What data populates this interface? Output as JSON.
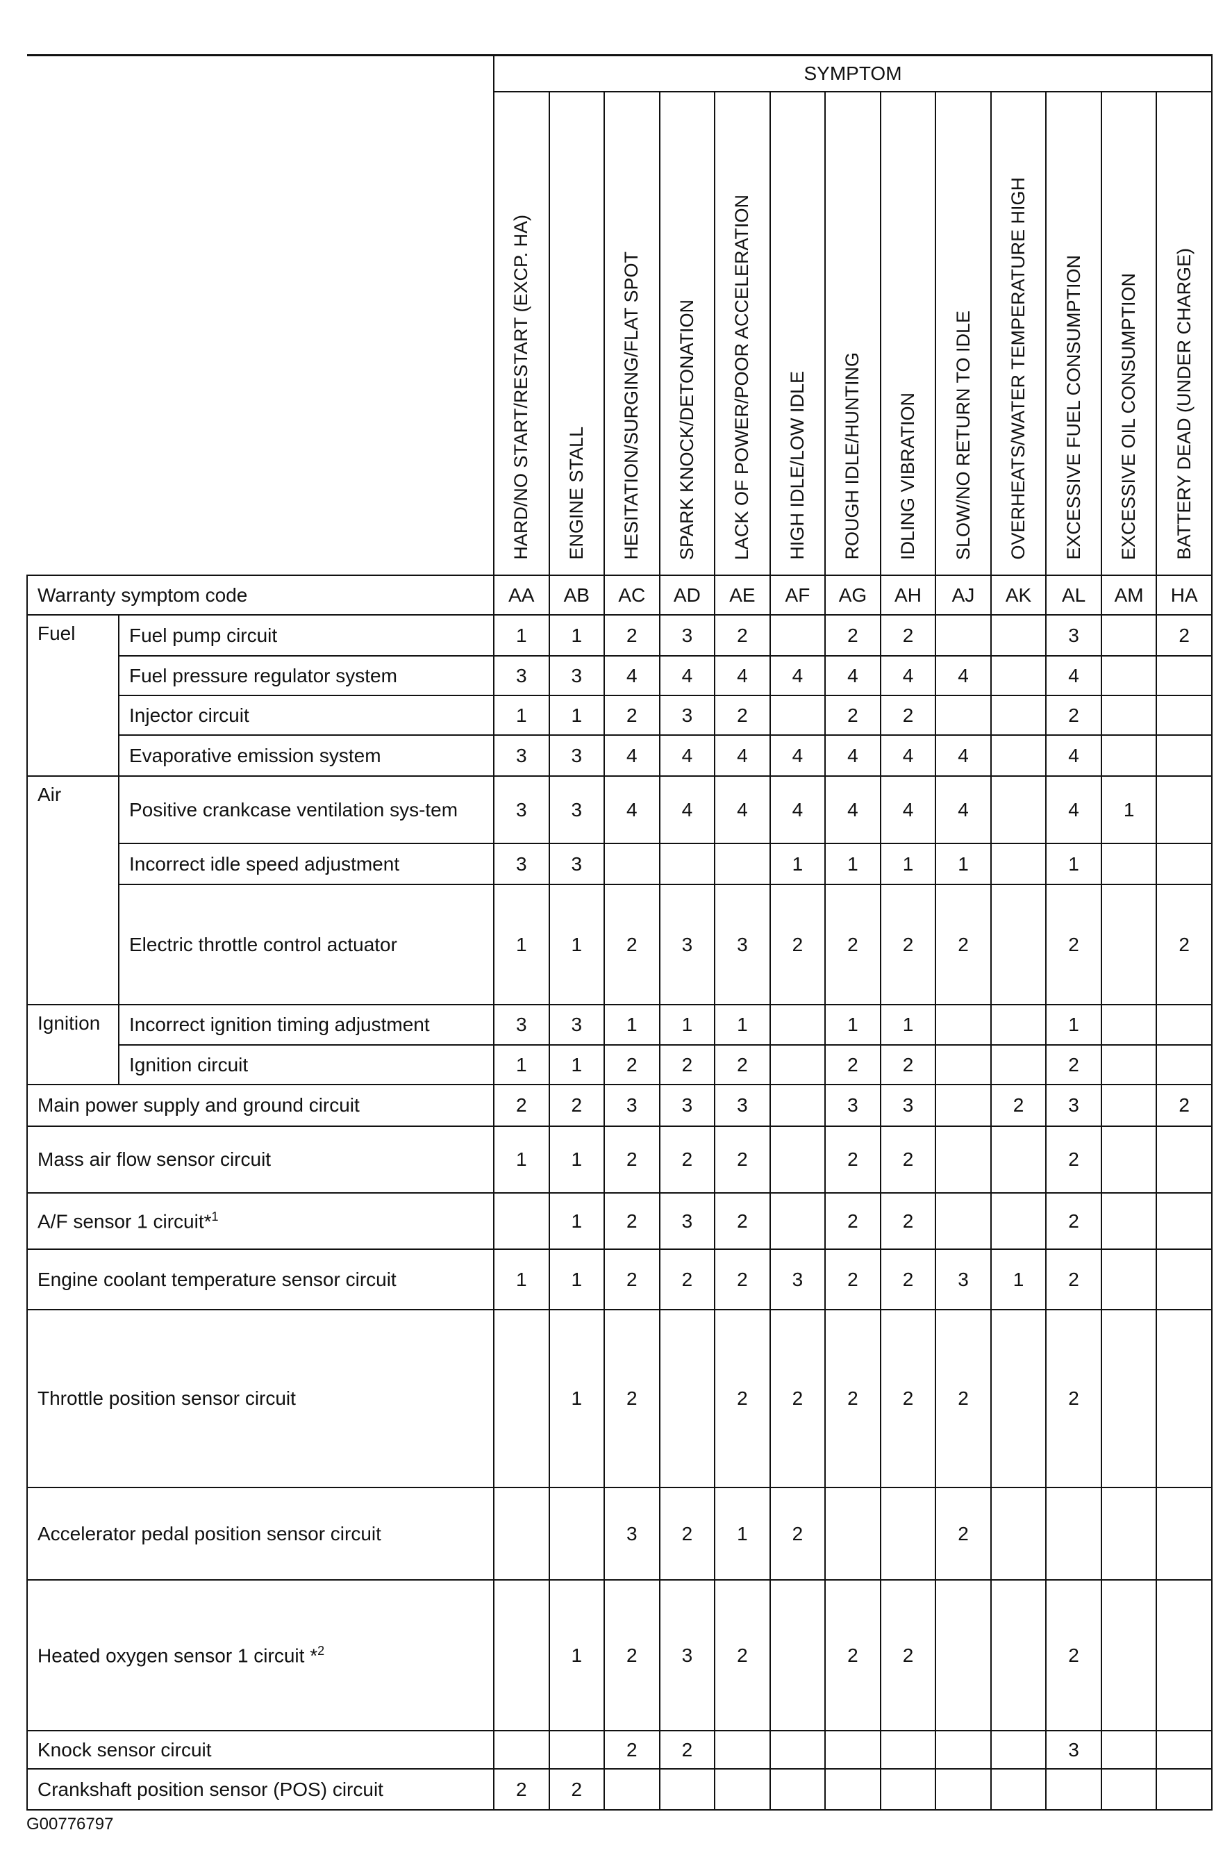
{
  "header": {
    "symptom_label": "SYMPTOM",
    "symptoms": [
      "HARD/NO START/RESTART (EXCP. HA)",
      "ENGINE STALL",
      "HESITATION/SURGING/FLAT SPOT",
      "SPARK KNOCK/DETONATION",
      "LACK OF POWER/POOR ACCELERATION",
      "HIGH IDLE/LOW IDLE",
      "ROUGH IDLE/HUNTING",
      "IDLING VIBRATION",
      "SLOW/NO RETURN TO IDLE",
      "OVERHEATS/WATER TEMPERATURE HIGH",
      "EXCESSIVE FUEL CONSUMPTION",
      "EXCESSIVE OIL CONSUMPTION",
      "BATTERY DEAD (UNDER CHARGE)"
    ],
    "code_label": "Warranty symptom code",
    "codes": [
      "AA",
      "AB",
      "AC",
      "AD",
      "AE",
      "AF",
      "AG",
      "AH",
      "AJ",
      "AK",
      "AL",
      "AM",
      "HA"
    ]
  },
  "rows": [
    {
      "category": "Fuel",
      "span": 4,
      "label": "Fuel pump circuit",
      "values": [
        "1",
        "1",
        "2",
        "3",
        "2",
        "",
        "2",
        "2",
        "",
        "",
        "3",
        "",
        "2"
      ]
    },
    {
      "label": "Fuel pressure regulator system",
      "values": [
        "3",
        "3",
        "4",
        "4",
        "4",
        "4",
        "4",
        "4",
        "4",
        "",
        "4",
        "",
        ""
      ]
    },
    {
      "label": "Injector circuit",
      "values": [
        "1",
        "1",
        "2",
        "3",
        "2",
        "",
        "2",
        "2",
        "",
        "",
        "2",
        "",
        ""
      ]
    },
    {
      "label": "Evaporative emission system",
      "values": [
        "3",
        "3",
        "4",
        "4",
        "4",
        "4",
        "4",
        "4",
        "4",
        "",
        "4",
        "",
        ""
      ]
    },
    {
      "category": "Air",
      "span": 3,
      "label": "Positive crankcase ventilation sys-tem",
      "values": [
        "3",
        "3",
        "4",
        "4",
        "4",
        "4",
        "4",
        "4",
        "4",
        "",
        "4",
        "1",
        ""
      ]
    },
    {
      "label": "Incorrect idle speed adjustment",
      "values": [
        "3",
        "3",
        "",
        "",
        "",
        "1",
        "1",
        "1",
        "1",
        "",
        "1",
        "",
        ""
      ]
    },
    {
      "label": "Electric throttle control actuator",
      "values": [
        "1",
        "1",
        "2",
        "3",
        "3",
        "2",
        "2",
        "2",
        "2",
        "",
        "2",
        "",
        "2"
      ]
    },
    {
      "category": "Ignition",
      "span": 2,
      "label": "Incorrect ignition timing adjustment",
      "values": [
        "3",
        "3",
        "1",
        "1",
        "1",
        "",
        "1",
        "1",
        "",
        "",
        "1",
        "",
        ""
      ]
    },
    {
      "label": "Ignition circuit",
      "values": [
        "1",
        "1",
        "2",
        "2",
        "2",
        "",
        "2",
        "2",
        "",
        "",
        "2",
        "",
        ""
      ]
    },
    {
      "full": true,
      "label": "Main power supply and ground circuit",
      "values": [
        "2",
        "2",
        "3",
        "3",
        "3",
        "",
        "3",
        "3",
        "",
        "2",
        "3",
        "",
        "2"
      ]
    },
    {
      "full": true,
      "label": "Mass air flow sensor circuit",
      "values": [
        "1",
        "1",
        "2",
        "2",
        "2",
        "",
        "2",
        "2",
        "",
        "",
        "2",
        "",
        ""
      ]
    },
    {
      "full": true,
      "label": "A/F sensor 1 circuit*",
      "sup": "1",
      "values": [
        "",
        "1",
        "2",
        "3",
        "2",
        "",
        "2",
        "2",
        "",
        "",
        "2",
        "",
        ""
      ]
    },
    {
      "full": true,
      "label": "Engine coolant temperature sensor circuit",
      "values": [
        "1",
        "1",
        "2",
        "2",
        "2",
        "3",
        "2",
        "2",
        "3",
        "1",
        "2",
        "",
        ""
      ]
    },
    {
      "full": true,
      "label": "Throttle position sensor circuit",
      "values": [
        "",
        "1",
        "2",
        "",
        "2",
        "2",
        "2",
        "2",
        "2",
        "",
        "2",
        "",
        ""
      ]
    },
    {
      "full": true,
      "label": "Accelerator pedal position sensor circuit",
      "values": [
        "",
        "",
        "3",
        "2",
        "1",
        "2",
        "",
        "",
        "2",
        "",
        "",
        "",
        ""
      ]
    },
    {
      "full": true,
      "label": "Heated oxygen sensor 1 circuit *",
      "sup": "2",
      "values": [
        "",
        "1",
        "2",
        "3",
        "2",
        "",
        "2",
        "2",
        "",
        "",
        "2",
        "",
        ""
      ]
    },
    {
      "full": true,
      "label": "Knock sensor circuit",
      "values": [
        "",
        "",
        "2",
        "2",
        "",
        "",
        "",
        "",
        "",
        "",
        "3",
        "",
        ""
      ]
    },
    {
      "full": true,
      "label": "Crankshaft position sensor (POS) circuit",
      "values": [
        "2",
        "2",
        "",
        "",
        "",
        "",
        "",
        "",
        "",
        "",
        "",
        "",
        ""
      ]
    }
  ],
  "footer": {
    "figure_id": "G00776797"
  }
}
